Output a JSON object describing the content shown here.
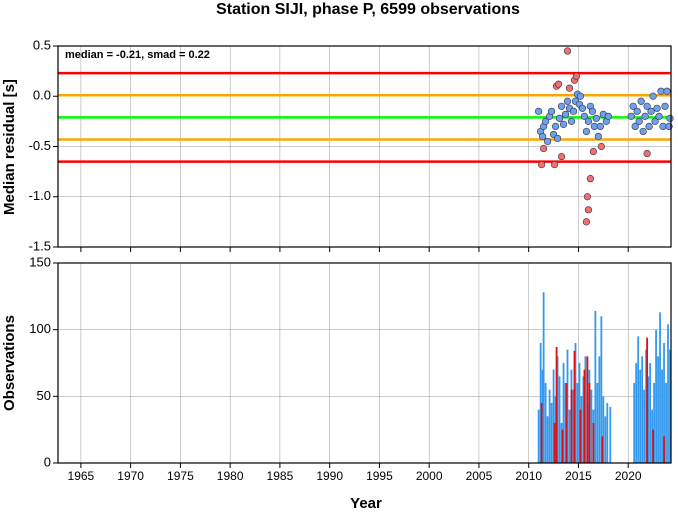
{
  "chart_data": [
    {
      "type": "scatter",
      "title": "Station SIJI, phase P, 6599 observations",
      "y_label": "Median residual [s]",
      "annotation": "median = -0.21, smad = 0.22",
      "ylim": [
        -1.5,
        0.5
      ],
      "yticks": [
        0.5,
        {
          "value": 0,
          "label": "0.0"
        },
        -0.5,
        {
          "value": -1,
          "label": "-1.0"
        },
        -1.5
      ],
      "grid": true,
      "hlines": [
        {
          "value": 0.23,
          "color": "#ff0000"
        },
        {
          "value": 0.01,
          "color": "#ffa500"
        },
        {
          "value": -0.21,
          "color": "#00ff00"
        },
        {
          "value": -0.43,
          "color": "#ffa500"
        },
        {
          "value": -0.65,
          "color": "#ff0000"
        }
      ],
      "series": [
        {
          "color": "#6fa0ec",
          "x": [
            2011.0,
            2011.2,
            2011.4,
            2011.5,
            2011.7,
            2011.9,
            2012.1,
            2012.3,
            2012.5,
            2012.7,
            2012.9,
            2013.1,
            2013.3,
            2013.5,
            2013.7,
            2013.9,
            2014.1,
            2014.3,
            2014.5,
            2014.7,
            2014.9,
            2015.1,
            2015.2,
            2015.4,
            2015.6,
            2015.8,
            2016.0,
            2016.2,
            2016.4,
            2016.6,
            2016.8,
            2017.0,
            2017.2,
            2017.5,
            2017.8,
            2018.0,
            2020.3,
            2020.5,
            2020.7,
            2020.9,
            2021.1,
            2021.3,
            2021.5,
            2021.7,
            2021.9,
            2022.1,
            2022.3,
            2022.5,
            2022.7,
            2022.9,
            2023.1,
            2023.3,
            2023.5,
            2023.7,
            2023.9,
            2024.1,
            2024.2
          ],
          "values": [
            -0.15,
            -0.35,
            -0.4,
            -0.3,
            -0.25,
            -0.45,
            -0.2,
            -0.15,
            -0.38,
            -0.3,
            -0.42,
            -0.22,
            -0.1,
            -0.28,
            -0.18,
            -0.05,
            -0.12,
            -0.25,
            -0.15,
            -0.05,
            0.02,
            -0.08,
            0.0,
            -0.12,
            -0.2,
            -0.35,
            -0.25,
            -0.1,
            -0.15,
            -0.3,
            -0.22,
            -0.4,
            -0.3,
            -0.18,
            -0.25,
            -0.2,
            -0.2,
            -0.1,
            -0.3,
            -0.15,
            -0.25,
            -0.05,
            -0.35,
            -0.2,
            -0.1,
            -0.3,
            -0.15,
            0.0,
            -0.25,
            -0.12,
            -0.2,
            0.05,
            -0.3,
            -0.1,
            0.05,
            -0.3,
            -0.22
          ]
        },
        {
          "color": "#f07070",
          "x": [
            2011.3,
            2011.5,
            2012.6,
            2012.8,
            2013.0,
            2013.3,
            2013.9,
            2014.1,
            2014.6,
            2014.8,
            2015.9,
            2016.0,
            2015.8,
            2016.2,
            2016.5,
            2017.3,
            2021.9
          ],
          "values": [
            -0.68,
            -0.52,
            -0.68,
            0.1,
            0.12,
            -0.6,
            0.45,
            0.08,
            0.16,
            0.2,
            -1.0,
            -1.13,
            -1.25,
            -0.82,
            -0.55,
            -0.5,
            -0.57
          ]
        }
      ]
    },
    {
      "type": "bar",
      "x_label": "Year",
      "y_label": "Observations",
      "xlim": [
        1962.7,
        2024.3
      ],
      "xticks": [
        1965,
        1970,
        1975,
        1980,
        1985,
        1990,
        1995,
        2000,
        2005,
        2010,
        2015,
        2020
      ],
      "ylim": [
        0,
        150
      ],
      "yticks": [
        0,
        50,
        100,
        150
      ],
      "grid": true,
      "series": [
        {
          "color": "#3399ee",
          "x": [
            2011.0,
            2011.2,
            2011.4,
            2011.5,
            2011.7,
            2011.9,
            2012.1,
            2012.3,
            2012.5,
            2012.7,
            2012.9,
            2013.1,
            2013.3,
            2013.5,
            2013.7,
            2013.9,
            2014.1,
            2014.3,
            2014.5,
            2014.7,
            2014.9,
            2015.1,
            2015.3,
            2015.5,
            2015.7,
            2015.9,
            2016.1,
            2016.3,
            2016.5,
            2016.7,
            2016.9,
            2017.1,
            2017.3,
            2017.5,
            2017.7,
            2017.9,
            2018.2,
            2020.6,
            2020.8,
            2021.0,
            2021.2,
            2021.4,
            2021.6,
            2021.8,
            2022.0,
            2022.2,
            2022.4,
            2022.6,
            2022.8,
            2023.0,
            2023.2,
            2023.4,
            2023.6,
            2023.8,
            2024.0,
            2024.2
          ],
          "values": [
            40,
            90,
            70,
            128,
            60,
            35,
            55,
            45,
            70,
            50,
            80,
            65,
            30,
            75,
            60,
            85,
            40,
            70,
            55,
            90,
            60,
            75,
            50,
            65,
            80,
            45,
            70,
            55,
            40,
            114,
            60,
            80,
            110,
            50,
            35,
            45,
            42,
            60,
            75,
            95,
            70,
            80,
            55,
            85,
            65,
            75,
            40,
            60,
            100,
            80,
            113,
            70,
            90,
            60,
            104,
            85
          ]
        },
        {
          "color": "#dd1111",
          "x": [
            2011.3,
            2012.6,
            2012.8,
            2013.4,
            2013.8,
            2014.3,
            2014.6,
            2015.2,
            2015.6,
            2015.9,
            2016.1,
            2016.5,
            2017.4,
            2021.9,
            2022.5,
            2023.6
          ],
          "values": [
            45,
            30,
            87,
            25,
            60,
            55,
            84,
            40,
            70,
            80,
            60,
            30,
            20,
            94,
            25,
            20
          ]
        }
      ]
    }
  ]
}
